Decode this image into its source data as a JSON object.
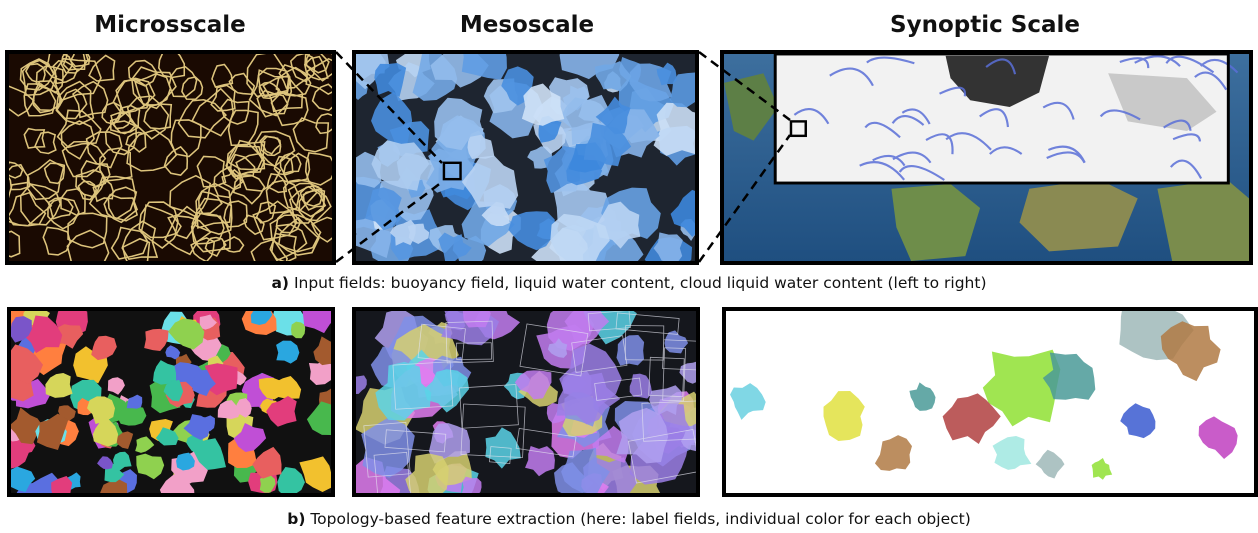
{
  "titles": {
    "micro": "Microsscale",
    "meso": "Mesoscale",
    "synoptic": "Synoptic Scale"
  },
  "captions": {
    "a_label": "a)",
    "a_text": " Input fields: buoyancy field, liquid water content, cloud liquid water content (left to right)",
    "b_label": "b)",
    "b_text": " Topology-based feature extraction (here: label fields, individual color for each object)"
  },
  "colors": {
    "micro_background": "#1a0a02",
    "micro_filament": "#f3d98a",
    "meso_cloud": "#6fa6e8",
    "meso_gap": "#1e2530",
    "ocean": "#2e5f8f",
    "land": "#6e8d4a",
    "label_palette": [
      "#e23d7c",
      "#34c3a2",
      "#f2c12e",
      "#5a6fe0",
      "#8fd14f",
      "#c04fd6",
      "#ff7f3f",
      "#2aa7e0",
      "#d6d65a",
      "#a35a2e",
      "#6be0e8",
      "#e85f5f",
      "#7a55c9",
      "#48b84d",
      "#f2a0c8"
    ]
  }
}
